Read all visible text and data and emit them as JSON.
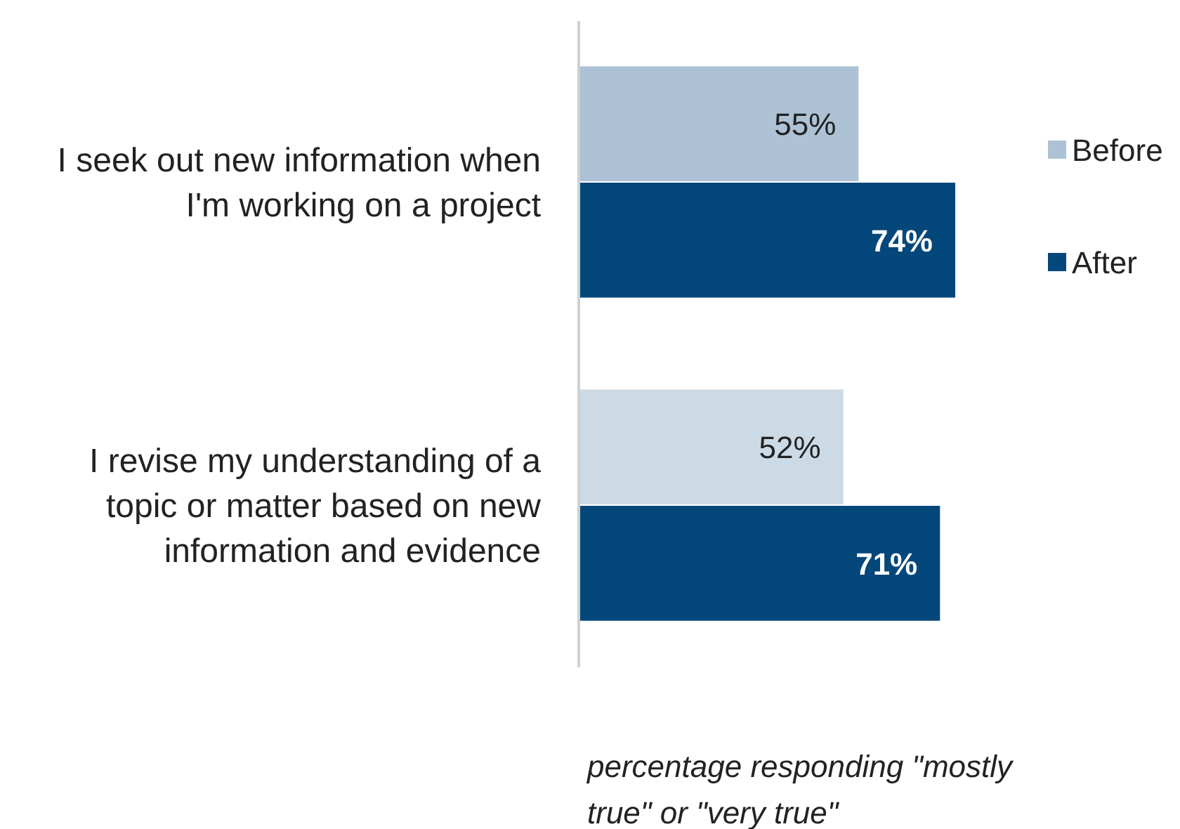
{
  "chart_data": {
    "type": "bar",
    "orientation": "horizontal",
    "categories": [
      "I seek out new information when I'm working on a project",
      "I revise my understanding of a topic or matter based on new information and evidence"
    ],
    "series": [
      {
        "name": "Before",
        "color": "#adc3d5",
        "colors": [
          "#adc3d5",
          "#ccdae5"
        ],
        "values": [
          55,
          52
        ],
        "value_labels": [
          "55%",
          "52%"
        ]
      },
      {
        "name": "After",
        "color": "#04477a",
        "values": [
          74,
          71
        ],
        "value_labels": [
          "74%",
          "71%"
        ]
      }
    ],
    "legend": "right",
    "annotations": [
      "percentage responding \"mostly true\" or \"very true\""
    ]
  }
}
